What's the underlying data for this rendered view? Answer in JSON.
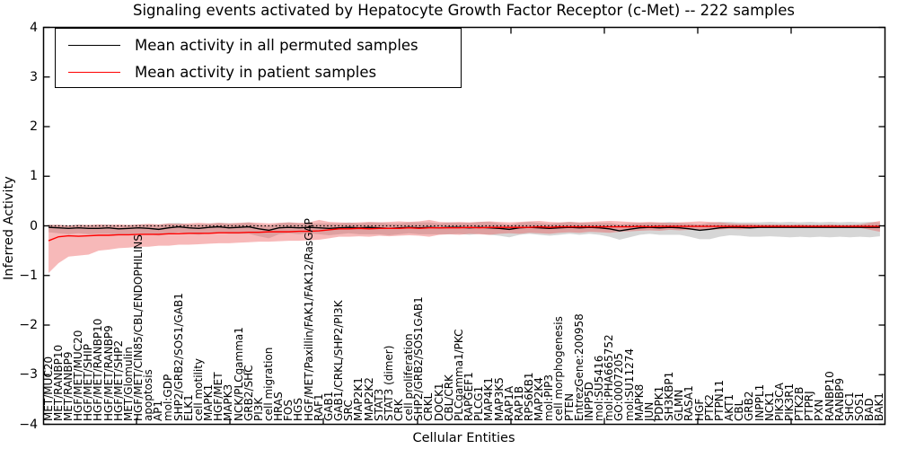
{
  "title": "Signaling events activated by Hepatocyte Growth Factor Receptor (c-Met) -- 222 samples",
  "legend": {
    "items": [
      {
        "label": "Mean activity in all permuted samples",
        "color": "#000000"
      },
      {
        "label": "Mean activity in patient samples",
        "color": "#ff0000"
      }
    ]
  },
  "axes": {
    "ylabel": "Inferred Activity",
    "xlabel": "Cellular Entities",
    "ytick_labels": [
      "4",
      "3",
      "2",
      "1",
      "0",
      "−1",
      "−2",
      "−3",
      "−4"
    ]
  },
  "chart_data": {
    "type": "line",
    "title": "Signaling events activated by Hepatocyte Growth Factor Receptor (c-Met) -- 222 samples",
    "xlabel": "Cellular Entities",
    "ylabel": "Inferred Activity",
    "ylim": [
      -4,
      4
    ],
    "yticks": [
      4,
      3,
      2,
      1,
      0,
      -1,
      -2,
      -3,
      -4
    ],
    "grid": false,
    "legend_position": "upper left",
    "zero_line": {
      "style": "dotted",
      "color": "#000000",
      "y": 0
    },
    "categories": [
      "MET/MUC20",
      "MET/RANBP10",
      "MET/RANBP9",
      "HGF/MET/MUC20",
      "HGF/MET/SHIP",
      "HGF/MET/RANBP10",
      "HGF/MET/RANBP9",
      "HGF/MET/SHP2",
      "MET/Glomulin",
      "HGF/MET/CIN85/CBL/ENDOPHILINS",
      "apoptosis",
      "AP1",
      "mol:GDP",
      "SHP2/GRB2/SOS1/GAB1",
      "ELK1",
      "cell motility",
      "MAPK1",
      "HGF/MET",
      "MAPK3",
      "NCK/PLCgamma1",
      "GRB2/SHC",
      "PI3K",
      "cell migration",
      "HRAS",
      "FOS",
      "HGS",
      "HGF/MET/Paxillin/FAK1/FAK12/RasGAP",
      "RAF1",
      "GAB1",
      "GAB1/CRKL/SHP2/PI3K",
      "SRC",
      "MAP2K1",
      "MAP2K2",
      "STAT3",
      "STAT3 (dimer)",
      "CRK",
      "cell proliferation",
      "SHP2/GRB2/SOS1GAB1",
      "CRKL",
      "DOCK1",
      "CBL/CRK",
      "PLCgamma1/PKC",
      "RAPGEF1",
      "PLCG1",
      "MAP4K1",
      "MAP3K5",
      "RAP1A",
      "RAP1B",
      "RPS6KB1",
      "MAP2K4",
      "mol:PIP3",
      "cell morphogenesis",
      "PTEN",
      "EntrezGene:200958",
      "INPP5D",
      "mol:SU5416",
      "mol:PHA665752",
      "GO:0007205",
      "mol:SU11274",
      "MAPK8",
      "JUN",
      "PDPK1",
      "SH3KBP1",
      "GLMN",
      "RASA1",
      "HGF",
      "PTK2",
      "PTPN11",
      "AKT1",
      "CBL",
      "GRB2",
      "INPPL1",
      "NCK1",
      "PIK3CA",
      "PIK3R1",
      "PTK2B",
      "PTPRJ",
      "PXN",
      "RANBP10",
      "RANBP9",
      "SHC1",
      "SOS1",
      "BAD",
      "BAK1"
    ],
    "series": [
      {
        "name": "Mean activity in all permuted samples",
        "color": "#000000",
        "band_color": "rgba(120,120,120,0.30)",
        "values": [
          -0.03,
          -0.04,
          -0.05,
          -0.04,
          -0.05,
          -0.05,
          -0.04,
          -0.06,
          -0.05,
          -0.04,
          -0.05,
          -0.07,
          -0.04,
          -0.02,
          -0.04,
          -0.05,
          -0.03,
          -0.02,
          -0.04,
          -0.03,
          -0.02,
          -0.06,
          -0.09,
          -0.04,
          -0.03,
          -0.04,
          -0.03,
          -0.04,
          -0.05,
          -0.04,
          -0.03,
          -0.04,
          -0.03,
          -0.04,
          -0.05,
          -0.04,
          -0.03,
          -0.04,
          -0.03,
          -0.04,
          -0.03,
          -0.03,
          -0.04,
          -0.03,
          -0.04,
          -0.05,
          -0.07,
          -0.04,
          -0.03,
          -0.04,
          -0.05,
          -0.04,
          -0.03,
          -0.04,
          -0.03,
          -0.04,
          -0.06,
          -0.1,
          -0.07,
          -0.04,
          -0.03,
          -0.04,
          -0.03,
          -0.04,
          -0.06,
          -0.09,
          -0.07,
          -0.04,
          -0.03,
          -0.03,
          -0.04,
          -0.03,
          -0.03,
          -0.03,
          -0.03,
          -0.03,
          -0.03,
          -0.03,
          -0.03,
          -0.03,
          -0.03,
          -0.03,
          -0.03,
          -0.03
        ],
        "band_upper": [
          0.02,
          0.02,
          0.01,
          0.03,
          0.01,
          0.02,
          0.03,
          0.0,
          0.01,
          0.03,
          0.03,
          0.02,
          0.05,
          0.06,
          0.03,
          0.03,
          0.04,
          0.06,
          0.05,
          0.05,
          0.07,
          0.02,
          0.0,
          0.05,
          0.07,
          0.05,
          0.05,
          0.05,
          0.05,
          0.05,
          0.07,
          0.05,
          0.07,
          0.07,
          0.05,
          0.05,
          0.07,
          0.07,
          0.07,
          0.05,
          0.07,
          0.06,
          0.06,
          0.08,
          0.08,
          0.05,
          0.02,
          0.06,
          0.08,
          0.06,
          0.04,
          0.06,
          0.08,
          0.06,
          0.06,
          0.06,
          0.06,
          0.03,
          0.05,
          0.06,
          0.06,
          0.06,
          0.08,
          0.06,
          0.05,
          0.03,
          0.06,
          0.08,
          0.08,
          0.07,
          0.07,
          0.07,
          0.08,
          0.07,
          0.08,
          0.07,
          0.08,
          0.07,
          0.08,
          0.07,
          0.08,
          0.07,
          0.08,
          0.07
        ],
        "band_lower": [
          -0.13,
          -0.15,
          -0.17,
          -0.15,
          -0.17,
          -0.16,
          -0.16,
          -0.19,
          -0.17,
          -0.15,
          -0.17,
          -0.2,
          -0.16,
          -0.13,
          -0.16,
          -0.18,
          -0.15,
          -0.13,
          -0.16,
          -0.16,
          -0.16,
          -0.21,
          -0.25,
          -0.17,
          -0.15,
          -0.17,
          -0.15,
          -0.17,
          -0.19,
          -0.17,
          -0.15,
          -0.17,
          -0.17,
          -0.17,
          -0.19,
          -0.17,
          -0.15,
          -0.17,
          -0.17,
          -0.17,
          -0.17,
          -0.16,
          -0.18,
          -0.16,
          -0.18,
          -0.2,
          -0.23,
          -0.18,
          -0.16,
          -0.18,
          -0.2,
          -0.18,
          -0.16,
          -0.18,
          -0.16,
          -0.18,
          -0.22,
          -0.28,
          -0.23,
          -0.18,
          -0.16,
          -0.18,
          -0.18,
          -0.18,
          -0.22,
          -0.27,
          -0.27,
          -0.22,
          -0.19,
          -0.2,
          -0.22,
          -0.22,
          -0.21,
          -0.22,
          -0.23,
          -0.22,
          -0.23,
          -0.22,
          -0.23,
          -0.22,
          -0.23,
          -0.22,
          -0.23,
          -0.21
        ]
      },
      {
        "name": "Mean activity in patient samples",
        "color": "#ff0000",
        "band_color": "rgba(235,80,80,0.40)",
        "values": [
          -0.3,
          -0.22,
          -0.2,
          -0.21,
          -0.2,
          -0.19,
          -0.19,
          -0.18,
          -0.18,
          -0.17,
          -0.17,
          -0.17,
          -0.16,
          -0.16,
          -0.15,
          -0.15,
          -0.15,
          -0.14,
          -0.14,
          -0.14,
          -0.13,
          -0.13,
          -0.12,
          -0.12,
          -0.12,
          -0.11,
          -0.11,
          -0.1,
          -0.08,
          -0.06,
          -0.06,
          -0.05,
          -0.06,
          -0.05,
          -0.05,
          -0.05,
          -0.04,
          -0.05,
          -0.04,
          -0.04,
          -0.04,
          -0.04,
          -0.03,
          -0.04,
          -0.03,
          -0.03,
          -0.03,
          -0.03,
          -0.03,
          -0.02,
          -0.03,
          -0.02,
          -0.02,
          -0.02,
          -0.02,
          -0.02,
          -0.02,
          -0.02,
          -0.02,
          -0.01,
          -0.02,
          -0.01,
          -0.01,
          -0.01,
          -0.01,
          -0.01,
          -0.01,
          -0.01,
          -0.01,
          -0.01,
          -0.01,
          -0.01,
          -0.01,
          -0.01,
          -0.01,
          -0.01,
          -0.01,
          -0.01,
          -0.01,
          -0.01,
          -0.01,
          -0.01,
          -0.01,
          -0.01
        ],
        "band_upper": [
          0.02,
          0.02,
          0.01,
          0.02,
          0.02,
          0.03,
          0.02,
          0.03,
          0.02,
          0.03,
          0.04,
          0.03,
          0.05,
          0.04,
          0.05,
          0.06,
          0.05,
          0.06,
          0.05,
          0.06,
          0.07,
          0.06,
          0.05,
          0.06,
          0.07,
          0.06,
          0.07,
          0.12,
          0.08,
          0.07,
          0.06,
          0.07,
          0.08,
          0.07,
          0.08,
          0.09,
          0.08,
          0.09,
          0.12,
          0.08,
          0.07,
          0.08,
          0.07,
          0.08,
          0.09,
          0.08,
          0.07,
          0.08,
          0.09,
          0.1,
          0.08,
          0.07,
          0.08,
          0.07,
          0.08,
          0.09,
          0.1,
          0.09,
          0.08,
          0.07,
          0.08,
          0.07,
          0.06,
          0.07,
          0.08,
          0.09,
          0.08,
          0.07,
          0.05,
          0.04,
          0.04,
          0.03,
          0.03,
          0.03,
          0.02,
          0.03,
          0.02,
          0.02,
          0.03,
          0.02,
          0.02,
          0.03,
          0.06,
          0.1
        ],
        "band_lower": [
          -0.95,
          -0.75,
          -0.62,
          -0.6,
          -0.58,
          -0.5,
          -0.48,
          -0.45,
          -0.44,
          -0.42,
          -0.42,
          -0.4,
          -0.4,
          -0.38,
          -0.38,
          -0.37,
          -0.36,
          -0.35,
          -0.35,
          -0.34,
          -0.33,
          -0.32,
          -0.32,
          -0.31,
          -0.3,
          -0.3,
          -0.29,
          -0.28,
          -0.25,
          -0.22,
          -0.22,
          -0.21,
          -0.22,
          -0.2,
          -0.21,
          -0.2,
          -0.19,
          -0.2,
          -0.22,
          -0.18,
          -0.17,
          -0.18,
          -0.16,
          -0.17,
          -0.18,
          -0.16,
          -0.15,
          -0.16,
          -0.14,
          -0.15,
          -0.16,
          -0.14,
          -0.13,
          -0.14,
          -0.12,
          -0.13,
          -0.14,
          -0.12,
          -0.11,
          -0.1,
          -0.09,
          -0.1,
          -0.08,
          -0.09,
          -0.08,
          -0.09,
          -0.08,
          -0.07,
          -0.06,
          -0.07,
          -0.05,
          -0.04,
          -0.04,
          -0.03,
          -0.04,
          -0.03,
          -0.03,
          -0.03,
          -0.04,
          -0.03,
          -0.03,
          -0.04,
          -0.08,
          -0.12
        ]
      }
    ]
  }
}
